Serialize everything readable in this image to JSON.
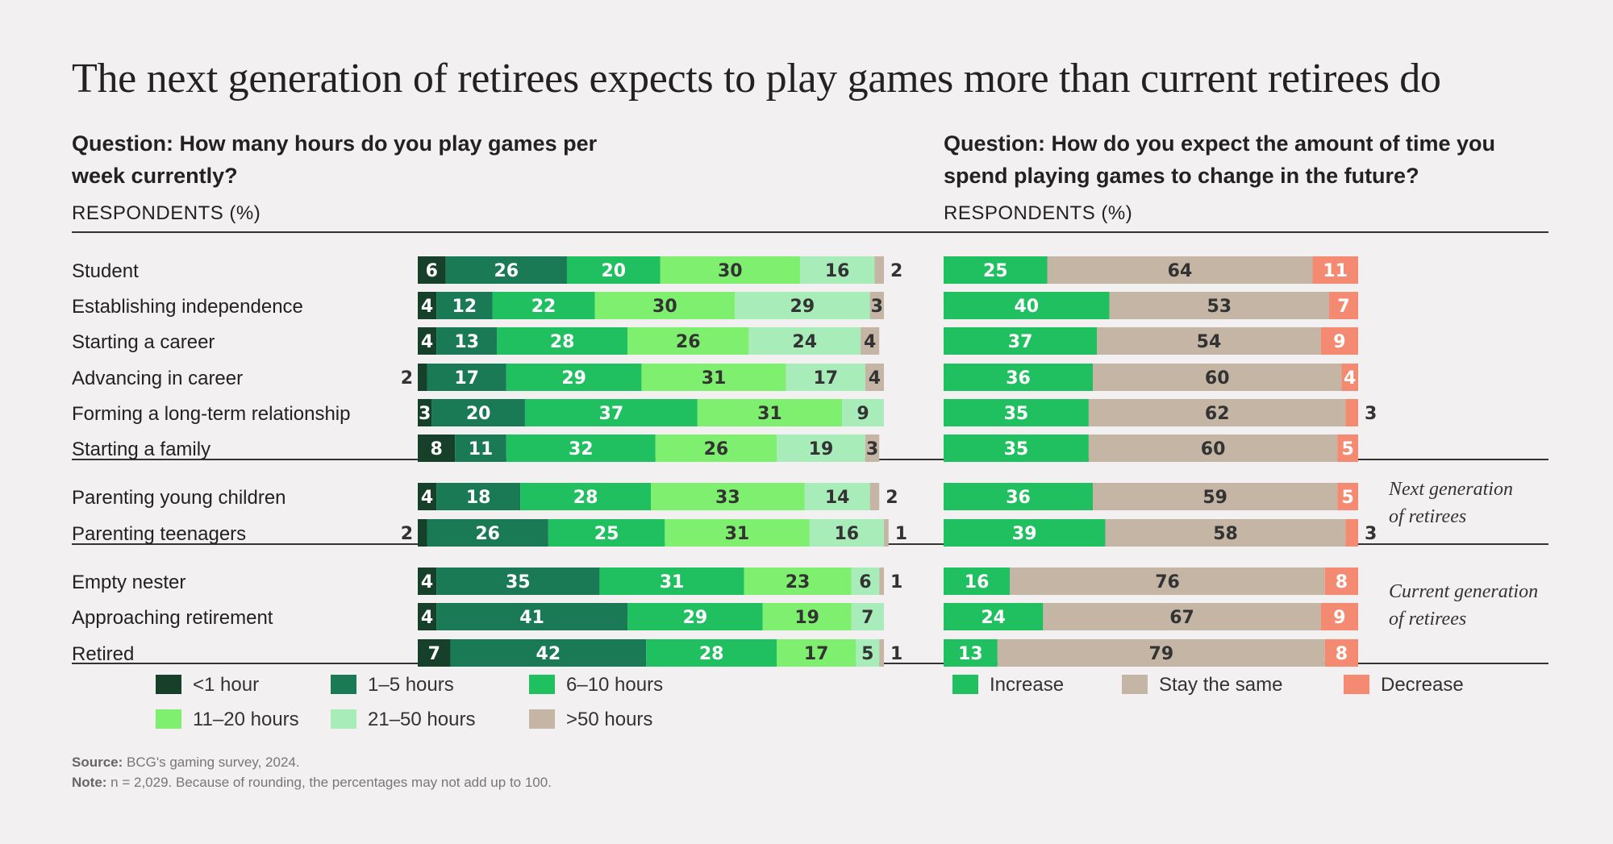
{
  "title": "The next generation of retirees expects to play games more than current retirees do",
  "left_question_line1": "Question: How many hours do you play games per",
  "left_question_line2": "week currently?",
  "right_question_line1": "Question: How do you expect the amount of time you",
  "right_question_line2": "spend playing games to change in the future?",
  "respondents_label": "RESPONDENTS (%)",
  "group_notes": {
    "next_line1": "Next generation",
    "next_line2": "of retirees",
    "current_line1": "Current generation",
    "current_line2": "of retirees"
  },
  "source_label": "Source:",
  "source_text": " BCG's gaming survey, 2024.",
  "note_label": "Note:",
  "note_text": " n = 2,029. Because of rounding, the percentages may not add up to 100.",
  "colors": {
    "lt1": "#17402a",
    "h1_5": "#197a55",
    "h6_10": "#20bf60",
    "h11_20": "#7eef6e",
    "h21_50": "#a8ecba",
    "gt50": "#c4b5a5",
    "increase": "#20bf60",
    "same": "#c4b5a5",
    "decrease": "#f58a72"
  },
  "legend_left": [
    {
      "label": "<1 hour",
      "color": "#17402a"
    },
    {
      "label": "1–5 hours",
      "color": "#197a55"
    },
    {
      "label": "6–10 hours",
      "color": "#20bf60"
    },
    {
      "label": "11–20 hours",
      "color": "#7eef6e"
    },
    {
      "label": "21–50 hours",
      "color": "#a8ecba"
    },
    {
      "label": ">50 hours",
      "color": "#c4b5a5"
    }
  ],
  "legend_right": [
    {
      "label": "Increase",
      "color": "#20bf60"
    },
    {
      "label": "Stay the same",
      "color": "#c4b5a5"
    },
    {
      "label": "Decrease",
      "color": "#f58a72"
    }
  ],
  "chart_data": [
    {
      "type": "bar",
      "orientation": "horizontal",
      "stacked": true,
      "title": "Question: How many hours do you play games per week currently?",
      "xlabel": "RESPONDENTS (%)",
      "xlim": [
        0,
        100
      ],
      "categories": [
        "Student",
        "Establishing independence",
        "Starting a career",
        "Advancing in career",
        "Forming a long-term relationship",
        "Starting a family",
        "Parenting young children",
        "Parenting teenagers",
        "Empty nester",
        "Approaching retirement",
        "Retired"
      ],
      "series": [
        {
          "name": "<1 hour",
          "values": [
            6,
            4,
            4,
            2,
            3,
            8,
            4,
            2,
            4,
            4,
            7
          ]
        },
        {
          "name": "1–5 hours",
          "values": [
            26,
            12,
            13,
            17,
            20,
            11,
            18,
            26,
            35,
            41,
            42
          ]
        },
        {
          "name": "6–10 hours",
          "values": [
            20,
            22,
            28,
            29,
            37,
            32,
            28,
            25,
            31,
            29,
            28
          ]
        },
        {
          "name": "11–20 hours",
          "values": [
            30,
            30,
            26,
            31,
            31,
            26,
            33,
            31,
            23,
            19,
            17
          ]
        },
        {
          "name": "21–50 hours",
          "values": [
            16,
            29,
            24,
            17,
            9,
            19,
            14,
            16,
            6,
            7,
            5
          ]
        },
        {
          "name": ">50 hours",
          "values": [
            2,
            3,
            4,
            4,
            0,
            3,
            2,
            1,
            1,
            0,
            1
          ]
        }
      ]
    },
    {
      "type": "bar",
      "orientation": "horizontal",
      "stacked": true,
      "title": "Question: How do you expect the amount of time you spend playing games to change in the future?",
      "xlabel": "RESPONDENTS (%)",
      "xlim": [
        0,
        100
      ],
      "categories": [
        "Student",
        "Establishing independence",
        "Starting a career",
        "Advancing in career",
        "Forming a long-term relationship",
        "Starting a family",
        "Parenting young children",
        "Parenting teenagers",
        "Empty nester",
        "Approaching retirement",
        "Retired"
      ],
      "series": [
        {
          "name": "Increase",
          "values": [
            25,
            40,
            37,
            36,
            35,
            35,
            36,
            39,
            16,
            24,
            13
          ]
        },
        {
          "name": "Stay the same",
          "values": [
            64,
            53,
            54,
            60,
            62,
            60,
            59,
            58,
            76,
            67,
            79
          ]
        },
        {
          "name": "Decrease",
          "values": [
            11,
            7,
            9,
            4,
            3,
            5,
            5,
            3,
            8,
            9,
            8
          ]
        }
      ]
    }
  ]
}
